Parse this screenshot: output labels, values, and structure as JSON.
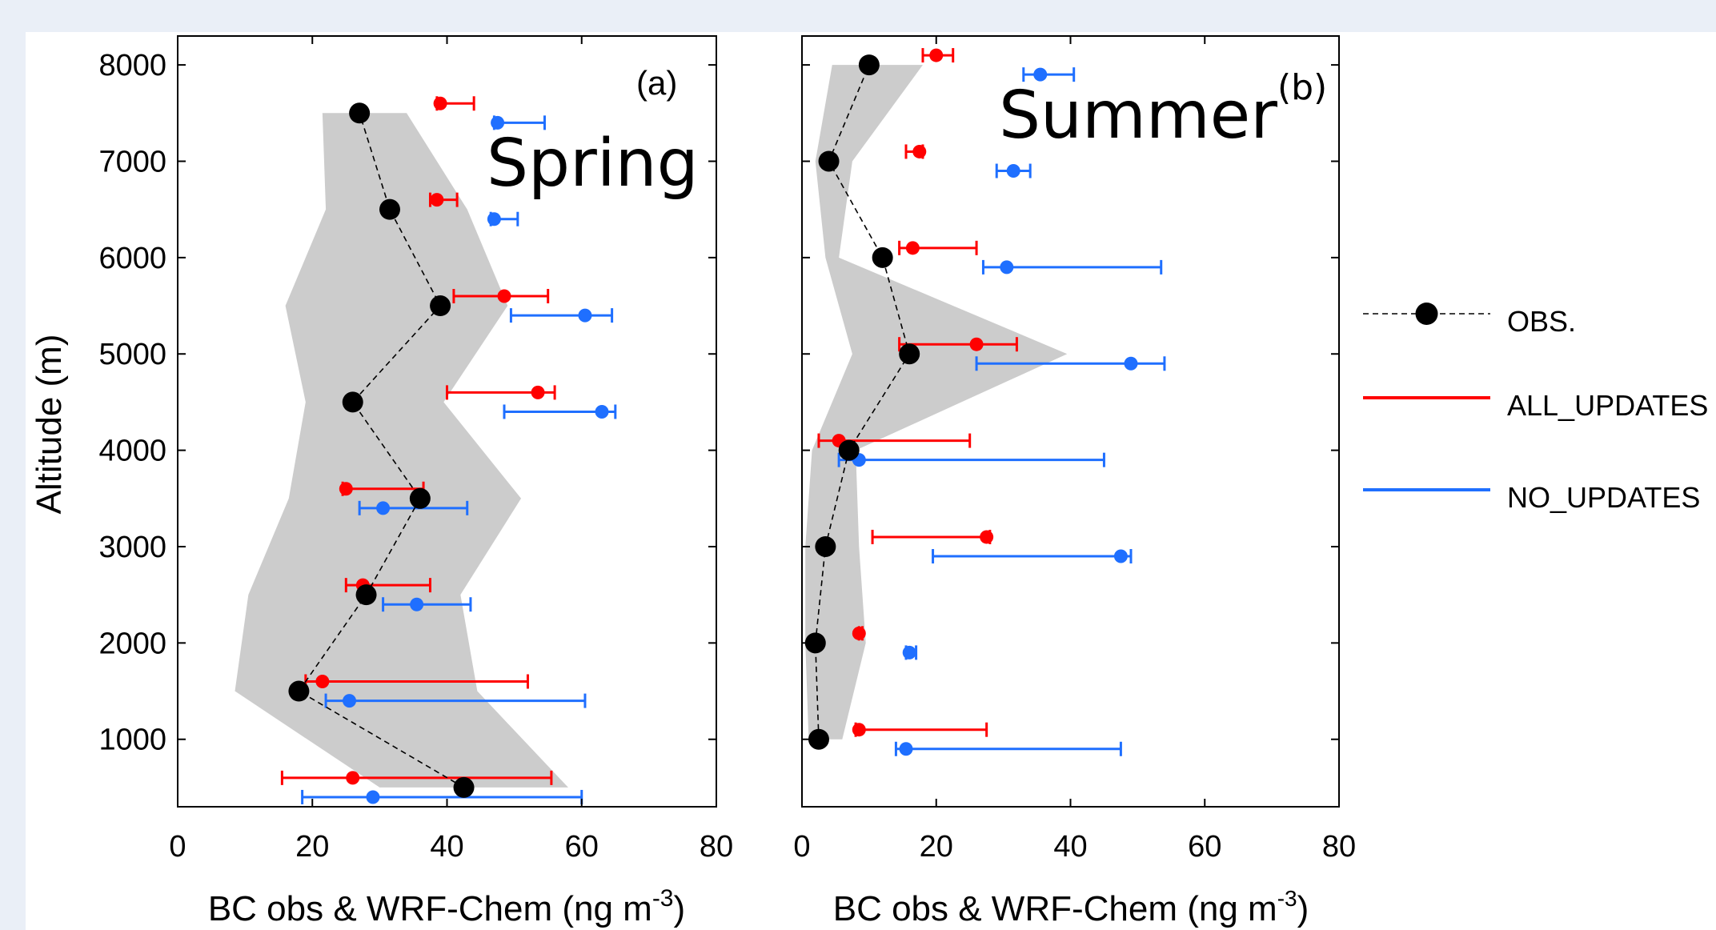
{
  "colors": {
    "obs": "#000000",
    "all_updates": "#ff0000",
    "no_updates": "#1f6fff",
    "band": "#cccccc",
    "page_bg": "#eaeff7",
    "plot_bg": "#ffffff"
  },
  "legend": [
    {
      "key": "obs",
      "label": "OBS.",
      "style": "dashed-marker",
      "color": "#000000"
    },
    {
      "key": "all",
      "label": "ALL_UPDATES",
      "style": "line",
      "color": "#ff0000"
    },
    {
      "key": "none",
      "label": "NO_UPDATES",
      "style": "line",
      "color": "#1f6fff"
    }
  ],
  "chart_data": [
    {
      "type": "scatter",
      "panel_label": "(a)",
      "title": "Spring",
      "xlabel": "BC obs & WRF-Chem (ng m",
      "xlabel_sup": "-3",
      "xlabel_end": ")",
      "ylabel": "Altitude (m)",
      "xlim": [
        0,
        80
      ],
      "ylim": [
        300,
        8300
      ],
      "xticks": [
        0,
        20,
        40,
        60,
        80
      ],
      "yticks": [
        1000,
        2000,
        3000,
        4000,
        5000,
        6000,
        7000,
        8000
      ],
      "obs": {
        "altitude": [
          500,
          1500,
          2500,
          3500,
          4500,
          5500,
          6500,
          7500
        ],
        "value": [
          42.5,
          18,
          28,
          36,
          26,
          39,
          31.5,
          27
        ]
      },
      "band": {
        "altitude": [
          500,
          1500,
          2500,
          3500,
          4500,
          5500,
          6500,
          7500
        ],
        "low": [
          30,
          8.5,
          10.5,
          16.5,
          19,
          16,
          22,
          21.5
        ],
        "high": [
          58,
          44.5,
          42,
          51,
          39.5,
          49,
          43,
          34
        ]
      },
      "all_updates": {
        "altitude": [
          600,
          1600,
          2600,
          3600,
          4600,
          5600,
          6600,
          7600
        ],
        "value": [
          26,
          21.5,
          27.5,
          25,
          53.5,
          48.5,
          38.5,
          39
        ],
        "err_low": [
          15.5,
          19,
          25,
          24.5,
          40,
          41,
          37.5,
          38.5
        ],
        "err_high": [
          55.5,
          52,
          37.5,
          36.5,
          56,
          55,
          41.5,
          44
        ]
      },
      "no_updates": {
        "altitude": [
          400,
          1400,
          2400,
          3400,
          4400,
          5400,
          6400,
          7400
        ],
        "value": [
          29,
          25.5,
          35.5,
          30.5,
          63,
          60.5,
          47,
          47.5
        ],
        "err_low": [
          18.5,
          22,
          30.5,
          27,
          48.5,
          49.5,
          46.5,
          47
        ],
        "err_high": [
          60,
          60.5,
          43.5,
          43,
          65,
          64.5,
          50.5,
          54.5
        ]
      }
    },
    {
      "type": "scatter",
      "panel_label": "(b)",
      "title": "Summer",
      "xlabel": "BC obs & WRF-Chem (ng m",
      "xlabel_sup": "-3",
      "xlabel_end": ")",
      "ylabel": "",
      "xlim": [
        0,
        80
      ],
      "ylim": [
        300,
        8300
      ],
      "xticks": [
        0,
        20,
        40,
        60,
        80
      ],
      "yticks": [
        1000,
        2000,
        3000,
        4000,
        5000,
        6000,
        7000,
        8000
      ],
      "obs": {
        "altitude": [
          1000,
          2000,
          3000,
          4000,
          5000,
          6000,
          7000,
          8000
        ],
        "value": [
          2.5,
          2,
          3.5,
          7,
          16,
          12,
          4,
          10
        ]
      },
      "band": {
        "altitude": [
          1000,
          2000,
          3000,
          4000,
          5000,
          6000,
          7000,
          8000
        ],
        "low": [
          1,
          0.5,
          0.5,
          1.5,
          7.5,
          3.5,
          2,
          4.5
        ],
        "high": [
          6,
          9.5,
          8.5,
          8,
          39.5,
          5.5,
          7.5,
          18
        ]
      },
      "all_updates": {
        "altitude": [
          1100,
          2100,
          3100,
          4100,
          5100,
          6100,
          7100,
          8100
        ],
        "value": [
          8.5,
          8.5,
          27.5,
          5.5,
          26,
          16.5,
          17.5,
          20
        ],
        "err_low": [
          8,
          8.5,
          10.5,
          2.5,
          14.5,
          14.5,
          15.5,
          18
        ],
        "err_high": [
          27.5,
          9,
          28,
          25,
          32,
          26,
          18,
          22.5
        ]
      },
      "no_updates": {
        "altitude": [
          900,
          1900,
          2900,
          3900,
          4900,
          5900,
          6900,
          7900
        ],
        "value": [
          15.5,
          16,
          47.5,
          8.5,
          49,
          30.5,
          31.5,
          35.5
        ],
        "err_low": [
          14,
          15.5,
          19.5,
          5.5,
          26,
          27,
          29,
          33
        ],
        "err_high": [
          47.5,
          17,
          49,
          45,
          54,
          53.5,
          34,
          40.5
        ]
      }
    }
  ]
}
